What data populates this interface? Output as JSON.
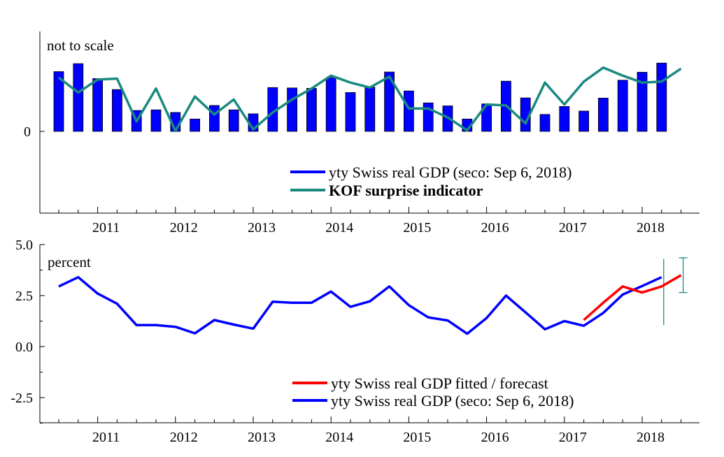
{
  "chart_data": [
    {
      "type": "bar",
      "note": "not to scale",
      "y_tick_labels": [
        "0"
      ],
      "x_tick_labels": [
        "2011",
        "2012",
        "2013",
        "2014",
        "2015",
        "2016",
        "2017",
        "2018"
      ],
      "x": [
        "2010Q3",
        "2010Q4",
        "2011Q1",
        "2011Q2",
        "2011Q3",
        "2011Q4",
        "2012Q1",
        "2012Q2",
        "2012Q3",
        "2012Q4",
        "2013Q1",
        "2013Q2",
        "2013Q3",
        "2013Q4",
        "2014Q1",
        "2014Q2",
        "2014Q3",
        "2014Q4",
        "2015Q1",
        "2015Q2",
        "2015Q3",
        "2015Q4",
        "2016Q1",
        "2016Q2",
        "2016Q3",
        "2016Q4",
        "2017Q1",
        "2017Q2",
        "2017Q3",
        "2017Q4",
        "2018Q1",
        "2018Q2",
        "2018Q3"
      ],
      "series": [
        {
          "name": "yty Swiss real GDP (seco: Sep 6, 2018)",
          "type": "bar",
          "color": "#0000ff",
          "values": [
            3.0,
            3.4,
            2.65,
            2.1,
            1.05,
            1.08,
            0.95,
            0.62,
            1.3,
            1.08,
            0.88,
            2.2,
            2.18,
            2.16,
            2.7,
            1.95,
            2.22,
            2.98,
            2.03,
            1.43,
            1.28,
            0.62,
            1.38,
            2.52,
            1.68,
            0.85,
            1.25,
            1.02,
            1.67,
            2.57,
            2.97,
            3.43,
            null
          ]
        },
        {
          "name": "KOF surprise indicator",
          "type": "line",
          "color": "#1a8a80",
          "values": [
            2.7,
            1.95,
            2.6,
            2.65,
            0.5,
            2.15,
            0.02,
            1.75,
            0.85,
            1.6,
            0.1,
            0.95,
            1.6,
            2.15,
            2.8,
            2.45,
            2.2,
            2.75,
            1.15,
            1.15,
            0.7,
            0.05,
            1.35,
            1.3,
            0.4,
            2.45,
            1.35,
            2.5,
            3.2,
            2.8,
            2.45,
            2.5,
            3.15
          ]
        }
      ]
    },
    {
      "type": "line",
      "note": "percent",
      "ylim": [
        -3.8,
        5.0
      ],
      "y_ticks": [
        5.0,
        2.5,
        0.0,
        -2.5
      ],
      "y_tick_labels": [
        "5.0",
        "2.5",
        "0.0",
        "-2.5"
      ],
      "x_tick_labels": [
        "2011",
        "2012",
        "2013",
        "2014",
        "2015",
        "2016",
        "2017",
        "2018"
      ],
      "x": [
        "2010Q3",
        "2010Q4",
        "2011Q1",
        "2011Q2",
        "2011Q3",
        "2011Q4",
        "2012Q1",
        "2012Q2",
        "2012Q3",
        "2012Q4",
        "2013Q1",
        "2013Q2",
        "2013Q3",
        "2013Q4",
        "2014Q1",
        "2014Q2",
        "2014Q3",
        "2014Q4",
        "2015Q1",
        "2015Q2",
        "2015Q3",
        "2015Q4",
        "2016Q1",
        "2016Q2",
        "2016Q3",
        "2016Q4",
        "2017Q1",
        "2017Q2",
        "2017Q3",
        "2017Q4",
        "2018Q1",
        "2018Q2",
        "2018Q3"
      ],
      "series": [
        {
          "name": "yty Swiss real GDP fitted / forecast",
          "color": "#ff0000",
          "values": [
            null,
            null,
            null,
            null,
            null,
            null,
            null,
            null,
            null,
            null,
            null,
            null,
            null,
            null,
            null,
            null,
            null,
            null,
            null,
            null,
            null,
            null,
            null,
            null,
            null,
            null,
            null,
            1.3,
            2.15,
            2.95,
            2.65,
            2.95,
            3.5
          ]
        },
        {
          "name": "yty Swiss real GDP (seco: Sep 6, 2018)",
          "color": "#0000ff",
          "values": [
            2.95,
            3.4,
            2.6,
            2.1,
            1.05,
            1.05,
            0.97,
            0.65,
            1.3,
            1.08,
            0.88,
            2.2,
            2.15,
            2.15,
            2.7,
            1.95,
            2.22,
            2.95,
            2.03,
            1.43,
            1.28,
            0.63,
            1.4,
            2.5,
            1.68,
            0.85,
            1.25,
            1.02,
            1.65,
            2.55,
            2.97,
            3.4,
            null
          ]
        }
      ],
      "interval_bands": [
        {
          "x": "2018Q2",
          "y_low": 1.05,
          "y_high": 4.3,
          "color": "#1a8a80"
        },
        {
          "x": "2018Q3",
          "y_low": 2.65,
          "y_high": 4.35,
          "color": "#1a8a80"
        }
      ]
    }
  ]
}
